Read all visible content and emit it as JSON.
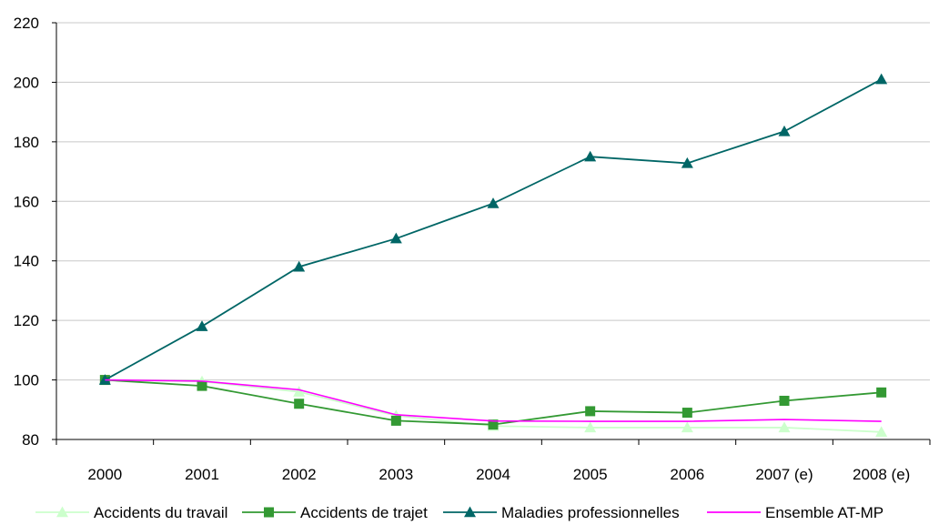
{
  "chart_data": {
    "type": "line",
    "title": "",
    "xlabel": "",
    "ylabel": "",
    "categories": [
      "2000",
      "2001",
      "2002",
      "2003",
      "2004",
      "2005",
      "2006",
      "2007 (e)",
      "2008 (e)"
    ],
    "ylim": [
      80,
      220
    ],
    "yticks": [
      80,
      100,
      120,
      140,
      160,
      180,
      200,
      220
    ],
    "grid": "horizontal",
    "legend_position": "bottom",
    "series": [
      {
        "name": "Accidents du travail",
        "marker": "triangle",
        "color": "#ccffcc",
        "values": [
          100,
          99.5,
          96,
          88,
          84.5,
          84,
          84,
          84,
          82.5
        ]
      },
      {
        "name": "Accidents de trajet",
        "marker": "square",
        "color": "#339933",
        "values": [
          100,
          98,
          92,
          86.3,
          85,
          89.5,
          89,
          93,
          95.8
        ]
      },
      {
        "name": "Maladies professionnelles",
        "marker": "triangle",
        "color": "#006666",
        "values": [
          100,
          118,
          138,
          147.5,
          159.3,
          175,
          172.8,
          183.5,
          201
        ]
      },
      {
        "name": "Ensemble AT-MP",
        "marker": "none",
        "color": "#ff00ff",
        "values": [
          100,
          99.6,
          96.7,
          88.3,
          86.2,
          86.1,
          86.1,
          86.7,
          86.1
        ]
      }
    ]
  }
}
